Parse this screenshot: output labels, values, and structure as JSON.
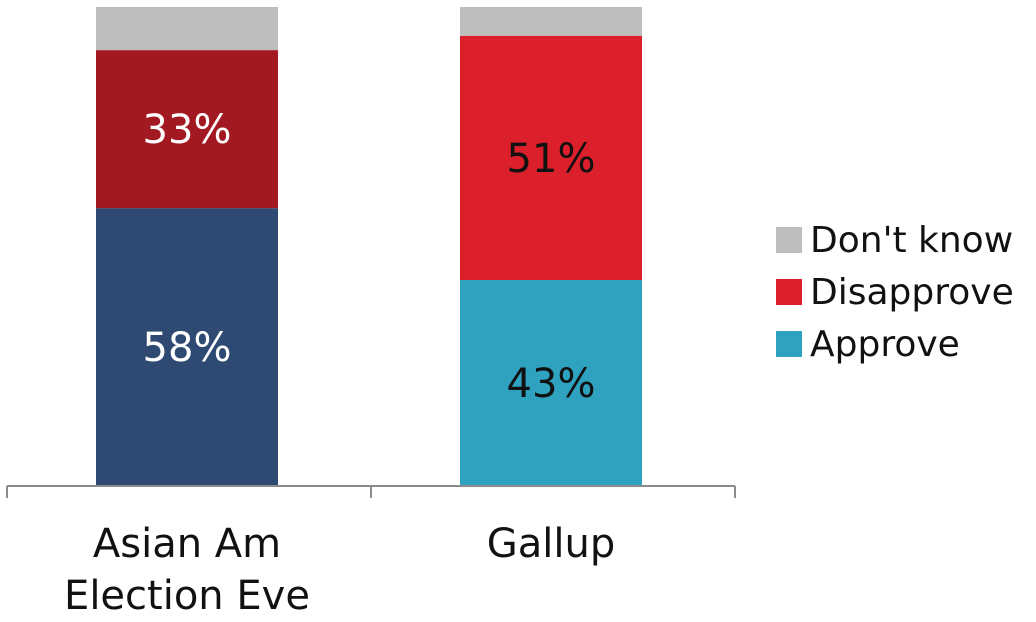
{
  "chart_data": {
    "type": "bar",
    "stacked": true,
    "categories": [
      "Asian Am Election Eve",
      "Gallup"
    ],
    "series": [
      {
        "name": "Approve",
        "values": [
          58,
          43
        ],
        "labels": [
          "58%",
          "43%"
        ]
      },
      {
        "name": "Disapprove",
        "values": [
          33,
          51
        ],
        "labels": [
          "33%",
          "51%"
        ]
      },
      {
        "name": "Don't know",
        "values": [
          9,
          6
        ],
        "labels": [
          "",
          ""
        ]
      }
    ],
    "bar_colors": [
      {
        "Approve": "#2E4A72",
        "Disapprove": "#A21921",
        "Don't know": "#BEBEBE"
      },
      {
        "Approve": "#2FA2C0",
        "Disapprove": "#DB1F2B",
        "Don't know": "#BEBEBE"
      }
    ],
    "label_colors": [
      "#ffffff",
      "#111111"
    ],
    "legend": {
      "position": "right",
      "items": [
        {
          "name": "Don't know",
          "color": "#BEBEBE"
        },
        {
          "name": "Disapprove",
          "color": "#DB1F2B"
        },
        {
          "name": "Approve",
          "color": "#2FA2C0"
        }
      ]
    },
    "ylim": [
      0,
      100
    ],
    "title": "",
    "xlabel": "",
    "ylabel": ""
  }
}
